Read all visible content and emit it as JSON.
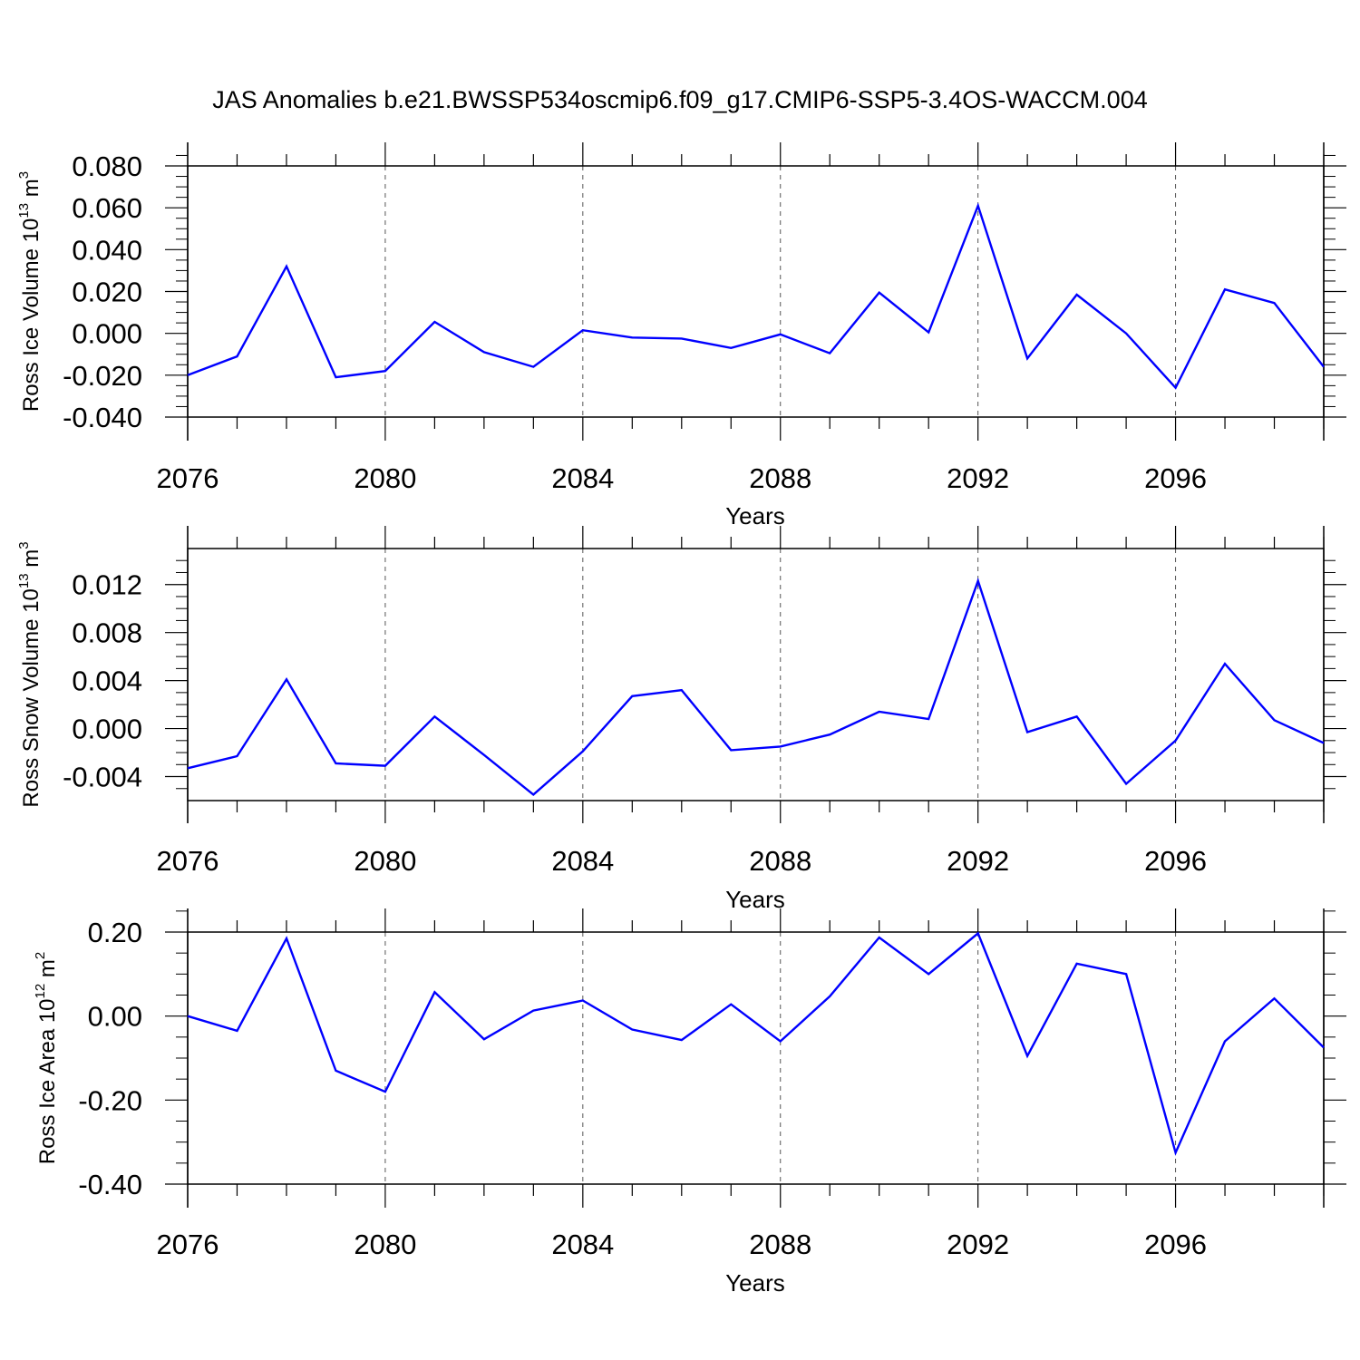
{
  "title": "JAS Anomalies b.e21.BWSSP534oscmip6.f09_g17.CMIP6-SSP5-3.4OS-WACCM.004",
  "colors": {
    "line": "#0000ff",
    "axis": "#000000",
    "grid": "#555555"
  },
  "chart_data": [
    {
      "type": "line",
      "ylabel_main": "Ross Ice Volume 10",
      "ylabel_exp": "13",
      "ylabel_unit": " m",
      "ylabel_unit_exp": "3",
      "xlabel": "Years",
      "xlim": [
        2076,
        2099
      ],
      "ylim": [
        -0.04,
        0.08
      ],
      "yticks": [
        -0.04,
        -0.02,
        0.0,
        0.02,
        0.04,
        0.06,
        0.08
      ],
      "ytick_labels": [
        "-0.040",
        "-0.020",
        "0.000",
        "0.020",
        "0.040",
        "0.060",
        "0.080"
      ],
      "yminor": [
        -0.035,
        -0.03,
        -0.025,
        -0.015,
        -0.01,
        -0.005,
        0.005,
        0.01,
        0.015,
        0.025,
        0.03,
        0.035,
        0.045,
        0.05,
        0.055,
        0.065,
        0.07,
        0.075,
        0.085
      ],
      "xticks": [
        2076,
        2080,
        2084,
        2088,
        2092,
        2096
      ],
      "xtick_labels": [
        "2076",
        "2080",
        "2084",
        "2088",
        "2092",
        "2096"
      ],
      "gridlines_x": [
        2080,
        2084,
        2088,
        2092,
        2096
      ],
      "x": [
        2076,
        2077,
        2078,
        2079,
        2080,
        2081,
        2082,
        2083,
        2084,
        2085,
        2086,
        2087,
        2088,
        2089,
        2090,
        2091,
        2092,
        2093,
        2094,
        2095,
        2096,
        2097,
        2098,
        2099
      ],
      "values": [
        -0.02,
        -0.011,
        0.032,
        -0.021,
        -0.018,
        0.0055,
        -0.009,
        -0.016,
        0.0015,
        -0.002,
        -0.0025,
        -0.007,
        -0.0005,
        -0.0095,
        0.0195,
        0.0005,
        0.061,
        -0.012,
        0.0185,
        0.0,
        -0.026,
        0.021,
        0.0145,
        -0.016
      ]
    },
    {
      "type": "line",
      "ylabel_main": "Ross Snow Volume 10",
      "ylabel_exp": "13",
      "ylabel_unit": " m",
      "ylabel_unit_exp": "3",
      "xlabel": "Years",
      "xlim": [
        2076,
        2099
      ],
      "ylim": [
        -0.006,
        0.015
      ],
      "yticks": [
        -0.004,
        0.0,
        0.004,
        0.008,
        0.012
      ],
      "ytick_labels": [
        "-0.004",
        "0.000",
        "0.004",
        "0.008",
        "0.012"
      ],
      "yminor": [
        -0.005,
        -0.003,
        -0.002,
        -0.001,
        0.001,
        0.002,
        0.003,
        0.005,
        0.006,
        0.007,
        0.009,
        0.01,
        0.011,
        0.013,
        0.014
      ],
      "xticks": [
        2076,
        2080,
        2084,
        2088,
        2092,
        2096
      ],
      "xtick_labels": [
        "2076",
        "2080",
        "2084",
        "2088",
        "2092",
        "2096"
      ],
      "gridlines_x": [
        2080,
        2084,
        2088,
        2092,
        2096
      ],
      "x": [
        2076,
        2077,
        2078,
        2079,
        2080,
        2081,
        2082,
        2083,
        2084,
        2085,
        2086,
        2087,
        2088,
        2089,
        2090,
        2091,
        2092,
        2093,
        2094,
        2095,
        2096,
        2097,
        2098,
        2099
      ],
      "values": [
        -0.0033,
        -0.0023,
        0.0041,
        -0.0029,
        -0.0031,
        0.001,
        -0.0022,
        -0.0055,
        -0.0019,
        0.0027,
        0.0032,
        -0.0018,
        -0.0015,
        -0.0005,
        0.0014,
        0.0008,
        0.0123,
        -0.0003,
        0.001,
        -0.0046,
        -0.001,
        0.0054,
        0.0007,
        -0.0012
      ]
    },
    {
      "type": "line",
      "ylabel_main": "Ross Ice Area 10",
      "ylabel_exp": "12",
      "ylabel_unit": " m",
      "ylabel_unit_exp": "2",
      "xlabel": "Years",
      "xlim": [
        2076,
        2099
      ],
      "ylim": [
        -0.4,
        0.2
      ],
      "yticks": [
        -0.4,
        -0.2,
        0.0,
        0.2
      ],
      "ytick_labels": [
        "-0.40",
        "-0.20",
        "0.00",
        "0.20"
      ],
      "yminor": [
        -0.35,
        -0.3,
        -0.25,
        -0.15,
        -0.1,
        -0.05,
        0.05,
        0.1,
        0.15,
        0.25
      ],
      "xticks": [
        2076,
        2080,
        2084,
        2088,
        2092,
        2096
      ],
      "xtick_labels": [
        "2076",
        "2080",
        "2084",
        "2088",
        "2092",
        "2096"
      ],
      "gridlines_x": [
        2080,
        2084,
        2088,
        2092,
        2096
      ],
      "x": [
        2076,
        2077,
        2078,
        2079,
        2080,
        2081,
        2082,
        2083,
        2084,
        2085,
        2086,
        2087,
        2088,
        2089,
        2090,
        2091,
        2092,
        2093,
        2094,
        2095,
        2096,
        2097,
        2098,
        2099
      ],
      "values": [
        0.0,
        -0.035,
        0.185,
        -0.13,
        -0.18,
        0.057,
        -0.055,
        0.013,
        0.037,
        -0.032,
        -0.057,
        0.028,
        -0.06,
        0.047,
        0.187,
        0.1,
        0.197,
        -0.095,
        0.125,
        0.1,
        -0.325,
        -0.06,
        0.042,
        -0.075
      ]
    }
  ]
}
